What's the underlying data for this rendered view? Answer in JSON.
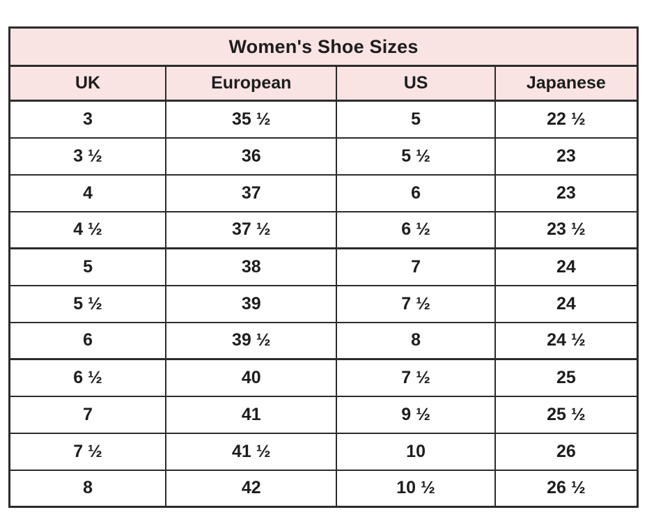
{
  "table": {
    "title": "Women's Shoe Sizes",
    "columns": [
      "UK",
      "European",
      "US",
      "Japanese"
    ],
    "column_keys": [
      "uk",
      "european",
      "us",
      "japanese"
    ],
    "rows": [
      [
        "3",
        "35 ½",
        "5",
        "22 ½"
      ],
      [
        "3 ½",
        "36",
        "5 ½",
        "23"
      ],
      [
        "4",
        "37",
        "6",
        "23"
      ],
      [
        "4 ½",
        "37 ½",
        "6 ½",
        "23 ½"
      ],
      [
        "5",
        "38",
        "7",
        "24"
      ],
      [
        "5 ½",
        "39",
        "7 ½",
        "24"
      ],
      [
        "6",
        "39 ½",
        "8",
        "24 ½"
      ],
      [
        "6 ½",
        "40",
        "7 ½",
        "25"
      ],
      [
        "7",
        "41",
        "9 ½",
        "25 ½"
      ],
      [
        "7 ½",
        "41 ½",
        "10",
        "26"
      ],
      [
        "8",
        "42",
        "10 ½",
        "26 ½"
      ]
    ],
    "group_start_rows": [
      4,
      7
    ],
    "colors": {
      "header_background": "#f9e3e3",
      "border": "#2b2b2b",
      "text": "#1d1d1d",
      "row_background": "#ffffff"
    }
  }
}
